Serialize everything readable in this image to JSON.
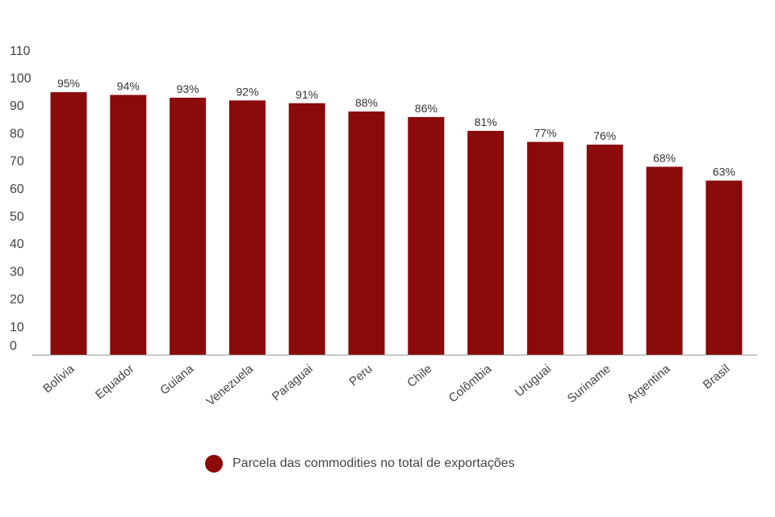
{
  "chart_data": {
    "type": "bar",
    "categories": [
      "Bolívia",
      "Equador",
      "Guiana",
      "Venezuela",
      "Paraguai",
      "Peru",
      "Chile",
      "Colômbia",
      "Uruguai",
      "Suriname",
      "Argentina",
      "Brasil"
    ],
    "series": [
      {
        "name": "Parcela das commodities no total de exportações",
        "values": [
          95,
          94,
          93,
          92,
          91,
          88,
          86,
          81,
          77,
          76,
          68,
          63
        ],
        "labels": [
          "95%",
          "94%",
          "93%",
          "92%",
          "91%",
          "88%",
          "86%",
          "81%",
          "77%",
          "76%",
          "68%",
          "63%"
        ]
      }
    ],
    "yticks": [
      0,
      10,
      20,
      30,
      40,
      50,
      60,
      70,
      80,
      90,
      100,
      110
    ],
    "ylim": [
      0,
      110
    ],
    "grid": false,
    "legend_position": "bottom",
    "colors": {
      "bar": "#8B0A0A",
      "axis": "#999999"
    }
  }
}
